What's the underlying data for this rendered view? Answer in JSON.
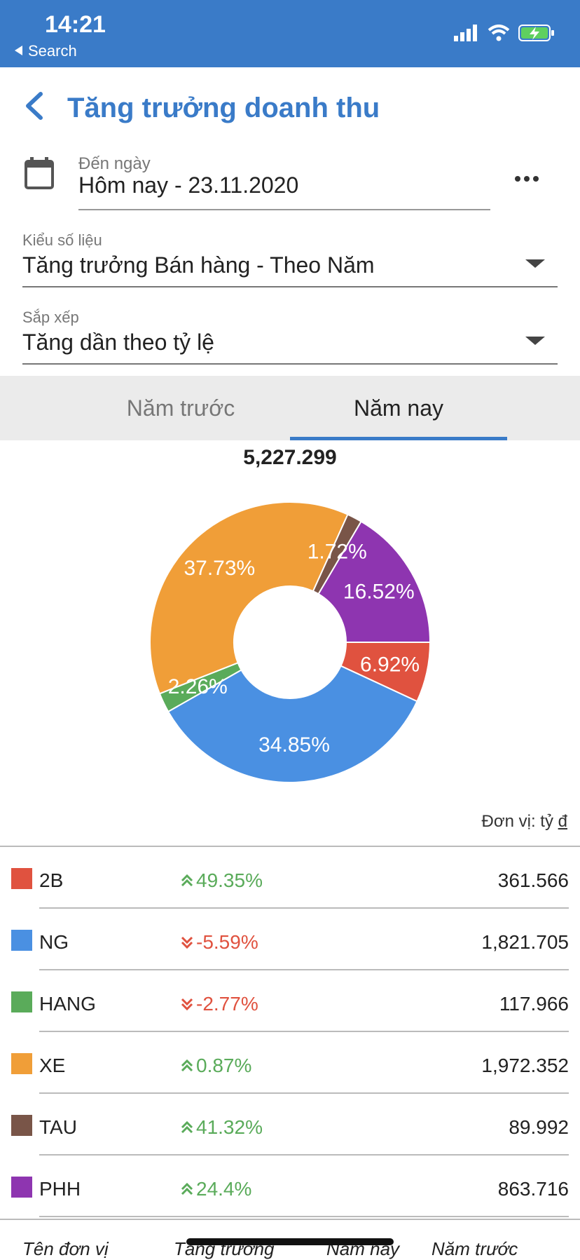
{
  "status_bar": {
    "time": "14:21",
    "back_label": "Search"
  },
  "header": {
    "title": "Tăng trưởng doanh thu"
  },
  "date_field": {
    "label": "Đến ngày",
    "value": "Hôm nay - 23.11.2020"
  },
  "data_type_field": {
    "label": "Kiểu số liệu",
    "value": "Tăng trưởng Bán hàng - Theo Năm"
  },
  "sort_field": {
    "label": "Sắp xếp",
    "value": "Tăng dần theo tỷ lệ"
  },
  "tabs": [
    {
      "label": "Năm trước",
      "active": false
    },
    {
      "label": "Năm nay",
      "active": true
    }
  ],
  "total": "5,227.299",
  "unit_label": "Đơn vị: tỷ",
  "unit_currency": "đ",
  "colors": {
    "accent": "#3a7bc8",
    "up": "#5aab5a",
    "down": "#e0523f"
  },
  "chart_data": {
    "type": "pie",
    "donut": true,
    "slices": [
      {
        "name": "2B",
        "percent": 6.92,
        "label": "6.92%",
        "color": "#e0523f"
      },
      {
        "name": "NG",
        "percent": 34.85,
        "label": "34.85%",
        "color": "#4a90e2"
      },
      {
        "name": "HANG",
        "percent": 2.26,
        "label": "2.26%",
        "color": "#5aab5a"
      },
      {
        "name": "XE",
        "percent": 37.73,
        "label": "37.73%",
        "color": "#f09e38"
      },
      {
        "name": "TAU",
        "percent": 1.72,
        "label": "1.72%",
        "color": "#795548"
      },
      {
        "name": "PHH",
        "percent": 16.52,
        "label": "16.52%",
        "color": "#8e35b0"
      }
    ]
  },
  "rows": [
    {
      "name": "2B",
      "color": "#e0523f",
      "direction": "up",
      "change": "49.35%",
      "value": "361.566"
    },
    {
      "name": "NG",
      "color": "#4a90e2",
      "direction": "down",
      "change": "-5.59%",
      "value": "1,821.705"
    },
    {
      "name": "HANG",
      "color": "#5aab5a",
      "direction": "down",
      "change": "-2.77%",
      "value": "117.966"
    },
    {
      "name": "XE",
      "color": "#f09e38",
      "direction": "up",
      "change": "0.87%",
      "value": "1,972.352"
    },
    {
      "name": "TAU",
      "color": "#795548",
      "direction": "up",
      "change": "41.32%",
      "value": "89.992"
    },
    {
      "name": "PHH",
      "color": "#8e35b0",
      "direction": "up",
      "change": "24.4%",
      "value": "863.716"
    }
  ],
  "table_headers": [
    "Tên đơn vị",
    "Tăng trưởng",
    "Năm nay",
    "Năm trước"
  ]
}
